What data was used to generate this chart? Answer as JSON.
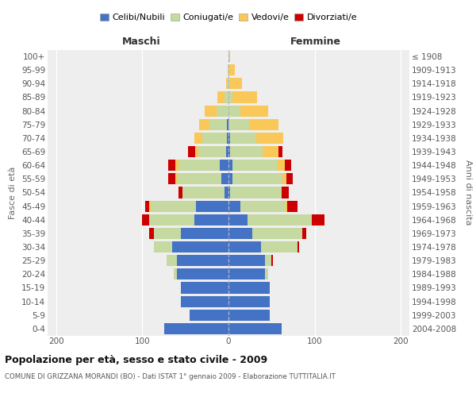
{
  "age_groups": [
    "0-4",
    "5-9",
    "10-14",
    "15-19",
    "20-24",
    "25-29",
    "30-34",
    "35-39",
    "40-44",
    "45-49",
    "50-54",
    "55-59",
    "60-64",
    "65-69",
    "70-74",
    "75-79",
    "80-84",
    "85-89",
    "90-94",
    "95-99",
    "100+"
  ],
  "birth_years": [
    "2004-2008",
    "1999-2003",
    "1994-1998",
    "1989-1993",
    "1984-1988",
    "1979-1983",
    "1974-1978",
    "1969-1973",
    "1964-1968",
    "1959-1963",
    "1954-1958",
    "1949-1953",
    "1944-1948",
    "1939-1943",
    "1934-1938",
    "1929-1933",
    "1924-1928",
    "1919-1923",
    "1914-1918",
    "1909-1913",
    "≤ 1908"
  ],
  "male_celibi": [
    75,
    45,
    55,
    55,
    60,
    60,
    65,
    55,
    40,
    38,
    5,
    8,
    10,
    3,
    2,
    2,
    0,
    0,
    0,
    0,
    0
  ],
  "male_coniugati": [
    0,
    0,
    0,
    0,
    4,
    12,
    22,
    32,
    52,
    52,
    48,
    52,
    48,
    32,
    28,
    20,
    14,
    5,
    1,
    0,
    0
  ],
  "male_vedovi": [
    0,
    0,
    0,
    0,
    0,
    0,
    0,
    0,
    0,
    2,
    0,
    2,
    4,
    4,
    10,
    12,
    14,
    8,
    2,
    1,
    0
  ],
  "male_divorziati": [
    0,
    0,
    0,
    0,
    0,
    0,
    0,
    5,
    8,
    5,
    5,
    8,
    8,
    8,
    0,
    0,
    0,
    0,
    0,
    0,
    0
  ],
  "female_nubili": [
    62,
    48,
    48,
    48,
    42,
    42,
    38,
    28,
    22,
    14,
    2,
    5,
    5,
    2,
    2,
    0,
    0,
    0,
    0,
    0,
    0
  ],
  "female_coniugate": [
    0,
    0,
    0,
    0,
    4,
    8,
    42,
    58,
    75,
    52,
    60,
    58,
    52,
    38,
    30,
    24,
    14,
    5,
    2,
    2,
    0
  ],
  "female_vedove": [
    0,
    0,
    0,
    0,
    0,
    0,
    0,
    0,
    0,
    2,
    0,
    4,
    8,
    18,
    32,
    34,
    32,
    28,
    14,
    5,
    2
  ],
  "female_divorziate": [
    0,
    0,
    0,
    0,
    0,
    2,
    2,
    4,
    14,
    12,
    8,
    8,
    8,
    5,
    0,
    0,
    0,
    0,
    0,
    0,
    0
  ],
  "colors": {
    "celibi": "#4472C4",
    "coniugati": "#C5D9A0",
    "vedovi": "#FAC858",
    "divorziati": "#CC0000"
  },
  "xlim": 210,
  "title": "Popolazione per età, sesso e stato civile - 2009",
  "subtitle": "COMUNE DI GRIZZANA MORANDI (BO) - Dati ISTAT 1° gennaio 2009 - Elaborazione TUTTITALIA.IT",
  "ylabel_left": "Fasce di età",
  "ylabel_right": "Anni di nascita",
  "xlabel_left": "Maschi",
  "xlabel_right": "Femmine",
  "legend_labels": [
    "Celibi/Nubili",
    "Coniugati/e",
    "Vedovi/e",
    "Divorziati/e"
  ],
  "bg_color": "#eeeeee",
  "bar_height": 0.82
}
